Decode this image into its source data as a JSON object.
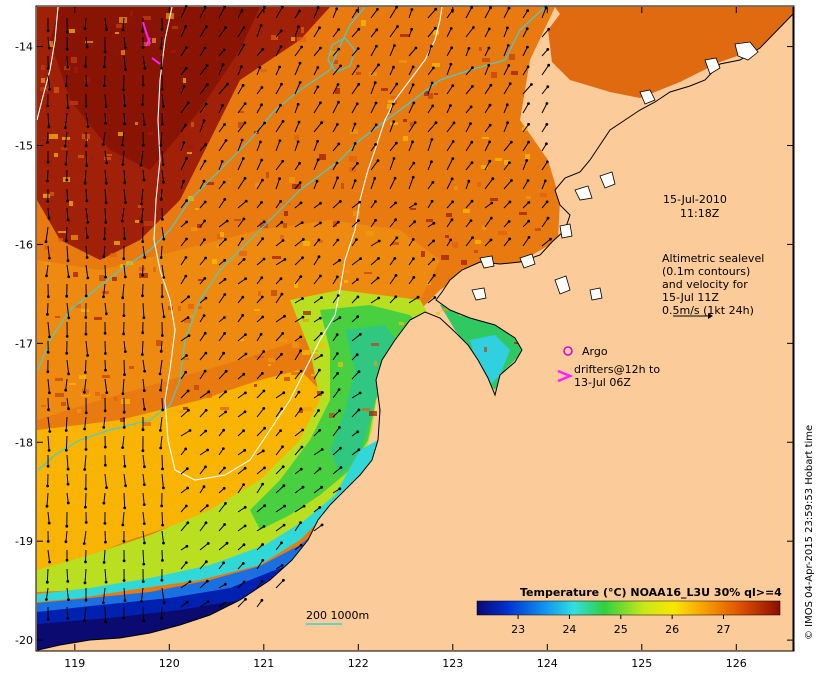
{
  "map": {
    "region_lat": [
      -20.1,
      -13.6
    ],
    "region_lon": [
      118.6,
      126.6
    ],
    "lat_ticks": [
      "-14",
      "-15",
      "-16",
      "-17",
      "-18",
      "-19",
      "-20"
    ],
    "lon_ticks": [
      "119",
      "120",
      "121",
      "122",
      "123",
      "124",
      "125",
      "126"
    ],
    "date": "15-Jul-2010",
    "time": "11:18Z",
    "altimetry_note": [
      "Altimetric sealevel",
      "(0.1m contours)",
      "and velocity for",
      "15-Jul 11Z"
    ],
    "velocity_scale_label": "0.5m/s (1kt 24h)",
    "argo_label": "Argo",
    "drifter_label": [
      "drifters@12h to",
      "13-Jul 06Z"
    ],
    "isobath_label": "200  1000m",
    "colorbar_title": "Temperature (°C) NOAA16_L3U 30% ql>=4",
    "colorbar_ticks": [
      "23",
      "24",
      "25",
      "26",
      "27"
    ],
    "colorbar_range": [
      22.2,
      28.1
    ],
    "credit": "© IMOS 04-Apr-2015 23:59:53 Hobart time",
    "colors": {
      "land": "#fccb9a",
      "isobath_200": "#40d0d0",
      "ssh_contour": "#ffffff",
      "argo": "#e000e0",
      "drifter": "#ff20ff",
      "velocity_arrow": "#000000"
    }
  }
}
